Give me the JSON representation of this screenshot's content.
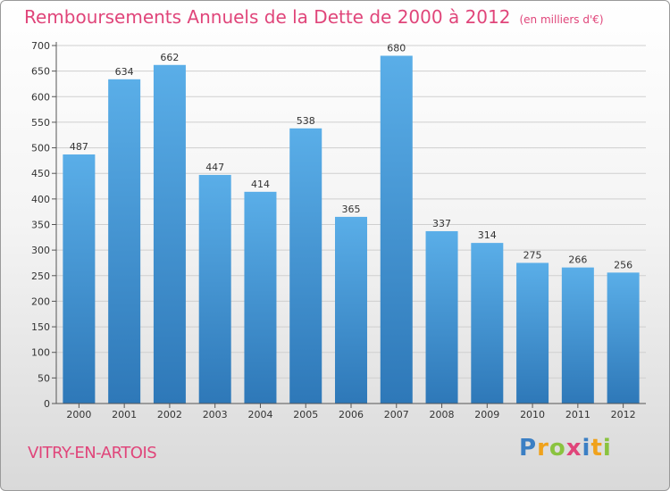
{
  "chart_data": {
    "type": "bar",
    "title": "Remboursements Annuels de la Dette de 2000 à 2012",
    "subtitle": "(en milliers d'€)",
    "categories": [
      "2000",
      "2001",
      "2002",
      "2003",
      "2004",
      "2005",
      "2006",
      "2007",
      "2008",
      "2009",
      "2010",
      "2011",
      "2012"
    ],
    "values": [
      487,
      634,
      662,
      447,
      414,
      538,
      365,
      680,
      337,
      314,
      275,
      266,
      256
    ],
    "ylim": [
      0,
      700
    ],
    "yticks": [
      0,
      50,
      100,
      150,
      200,
      250,
      300,
      350,
      400,
      450,
      500,
      550,
      600,
      650,
      700
    ],
    "xlabel": "",
    "ylabel": "",
    "grid": true,
    "colors": {
      "bar_top": "#5aaee8",
      "bar_bottom": "#2e78b8",
      "grid": "#cfcfcf",
      "text": "#333333",
      "accent": "#e0457a"
    }
  },
  "footer": {
    "location": "VITRY-EN-ARTOIS",
    "logo_letters": [
      {
        "ch": "P",
        "color": "#3b7fc4"
      },
      {
        "ch": "r",
        "color": "#f0a21c"
      },
      {
        "ch": "o",
        "color": "#8ac33f"
      },
      {
        "ch": "x",
        "color": "#e0457a"
      },
      {
        "ch": "i",
        "color": "#3b7fc4"
      },
      {
        "ch": "t",
        "color": "#f0a21c"
      },
      {
        "ch": "i",
        "color": "#8ac33f"
      }
    ]
  }
}
